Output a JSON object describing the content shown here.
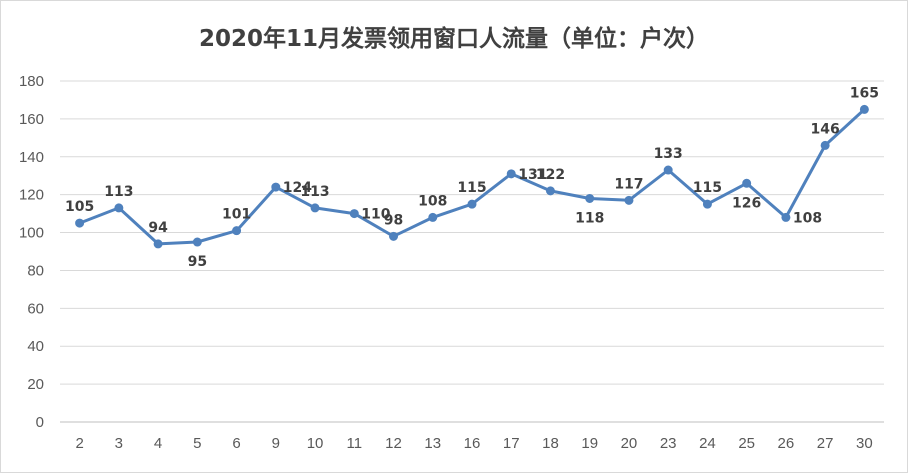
{
  "chart_data": {
    "type": "line",
    "title": "2020年11月发票领用窗口人流量（单位：户次）",
    "xlabel": "",
    "ylabel": "",
    "ylim": [
      0,
      180
    ],
    "ytick_step": 20,
    "grid": true,
    "legend": "none",
    "categories": [
      "2",
      "3",
      "4",
      "5",
      "6",
      "9",
      "10",
      "11",
      "12",
      "13",
      "16",
      "17",
      "18",
      "19",
      "20",
      "23",
      "24",
      "25",
      "26",
      "27",
      "30"
    ],
    "series": [
      {
        "values": [
          105,
          113,
          94,
          95,
          101,
          124,
          113,
          110,
          98,
          108,
          115,
          131,
          122,
          118,
          117,
          133,
          115,
          126,
          108,
          146,
          165
        ],
        "label_side": [
          "above",
          "above",
          "above",
          "below",
          "above",
          "right",
          "above",
          "right",
          "above",
          "above",
          "above",
          "right",
          "above",
          "below",
          "above",
          "above",
          "above",
          "below",
          "right",
          "above",
          "above"
        ],
        "color": "#4f81bd"
      }
    ]
  }
}
